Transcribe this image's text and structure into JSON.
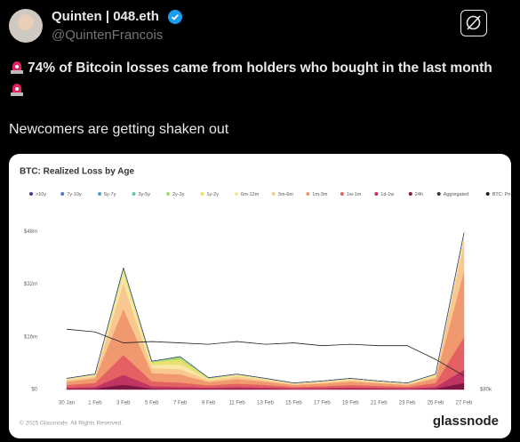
{
  "tweet": {
    "author": "Quinten | 048.eth",
    "handle": "@QuintenFrancois",
    "text": "74% of Bitcoin losses came from holders who bought in the last month",
    "subtext": "Newcomers are getting shaken out"
  },
  "card": {
    "footer": "© 2025 Glassnode. All Rights Reserved.",
    "brand": "glassnode"
  },
  "chart_data": {
    "type": "area",
    "title": "BTC: Realized Loss by Age",
    "categories": [
      "30 Jan",
      "1 Feb",
      "3 Feb",
      "5 Feb",
      "7 Feb",
      "9 Feb",
      "11 Feb",
      "13 Feb",
      "15 Feb",
      "17 Feb",
      "19 Feb",
      "21 Feb",
      "23 Feb",
      "25 Feb",
      "27 Feb"
    ],
    "ylim": [
      0,
      50
    ],
    "yticks": [
      {
        "value": 0,
        "label": "$0"
      },
      {
        "value": 16,
        "label": "$16m"
      },
      {
        "value": 32,
        "label": "$32m"
      },
      {
        "value": 48,
        "label": "$48m"
      }
    ],
    "y2lim": [
      80000,
      140000
    ],
    "y2ticks": [
      {
        "value": 80000,
        "label": "$80k"
      }
    ],
    "grid": false,
    "series": [
      {
        "name": ">10y",
        "color": "#3b3f9e",
        "values": [
          0,
          0,
          0,
          0,
          0,
          0,
          0,
          0,
          0,
          0,
          0,
          0,
          0,
          0,
          0
        ]
      },
      {
        "name": "7y-10y",
        "color": "#4a78c8",
        "values": [
          0,
          0,
          0,
          0,
          0,
          0,
          0,
          0,
          0,
          0,
          0,
          0,
          0,
          0,
          0
        ]
      },
      {
        "name": "5y-7y",
        "color": "#4aa3d4",
        "values": [
          0,
          0,
          0,
          0,
          0,
          0,
          0,
          0,
          0,
          0,
          0,
          0,
          0,
          0,
          0
        ]
      },
      {
        "name": "3y-5y",
        "color": "#5cc8a8",
        "values": [
          0,
          0,
          0,
          0,
          0,
          0,
          0,
          0,
          0,
          0,
          0,
          0,
          0,
          0,
          0
        ]
      },
      {
        "name": "2y-3y",
        "color": "#a8d870",
        "values": [
          0,
          0,
          0.5,
          0.3,
          0.8,
          0.2,
          0,
          0,
          0,
          0,
          0,
          0,
          0,
          0,
          0.2
        ]
      },
      {
        "name": "1y-2y",
        "color": "#e8e070",
        "values": [
          0.2,
          0.3,
          1,
          0.8,
          1.5,
          0.3,
          0.3,
          0.2,
          0.1,
          0.2,
          0.2,
          0.1,
          0.1,
          0.3,
          0.5
        ]
      },
      {
        "name": "6m-12m",
        "color": "#f7e6a4",
        "values": [
          0.3,
          0.4,
          3,
          1,
          1.5,
          0.3,
          0.4,
          0.3,
          0.2,
          0.2,
          0.3,
          0.2,
          0.2,
          0.4,
          2
        ]
      },
      {
        "name": "3m-6m",
        "color": "#f8c890",
        "values": [
          0.5,
          0.6,
          8,
          1.5,
          1.6,
          0.5,
          0.8,
          0.5,
          0.3,
          0.4,
          0.5,
          0.4,
          0.3,
          0.6,
          9
        ]
      },
      {
        "name": "1m-3m",
        "color": "#f0986e",
        "values": [
          1,
          1.4,
          14,
          2.5,
          2.5,
          1,
          1.4,
          1,
          0.6,
          0.8,
          1,
          0.8,
          0.6,
          1.4,
          20
        ]
      },
      {
        "name": "1w-1m",
        "color": "#e46062",
        "values": [
          0.8,
          1.2,
          6,
          1.5,
          1.3,
          0.7,
          1,
          0.8,
          0.4,
          0.5,
          0.8,
          0.6,
          0.4,
          1.2,
          10
        ]
      },
      {
        "name": "1d-1w",
        "color": "#c03462",
        "values": [
          0.4,
          0.5,
          3,
          0.7,
          0.6,
          0.4,
          0.5,
          0.4,
          0.3,
          0.4,
          0.4,
          0.3,
          0.3,
          0.5,
          4
        ]
      },
      {
        "name": "24h",
        "color": "#7e1644",
        "values": [
          0.2,
          0.3,
          1.5,
          0.3,
          0.2,
          0.2,
          0.3,
          0.2,
          0.1,
          0.1,
          0.2,
          0.2,
          0.1,
          0.3,
          2
        ]
      },
      {
        "name": "Aggregated",
        "color": "#333333",
        "values": [
          3.4,
          4.7,
          37,
          8.6,
          10,
          3.6,
          4.7,
          3.4,
          2,
          2.6,
          3.4,
          2.6,
          2,
          4.7,
          47.7
        ]
      },
      {
        "name": "BTC: Price [USD]",
        "color": "#222222",
        "axis": "y2",
        "values": [
          102000,
          101000,
          97000,
          97500,
          97000,
          96500,
          97500,
          96500,
          97000,
          96000,
          96500,
          96000,
          96000,
          91000,
          85000
        ]
      }
    ]
  }
}
